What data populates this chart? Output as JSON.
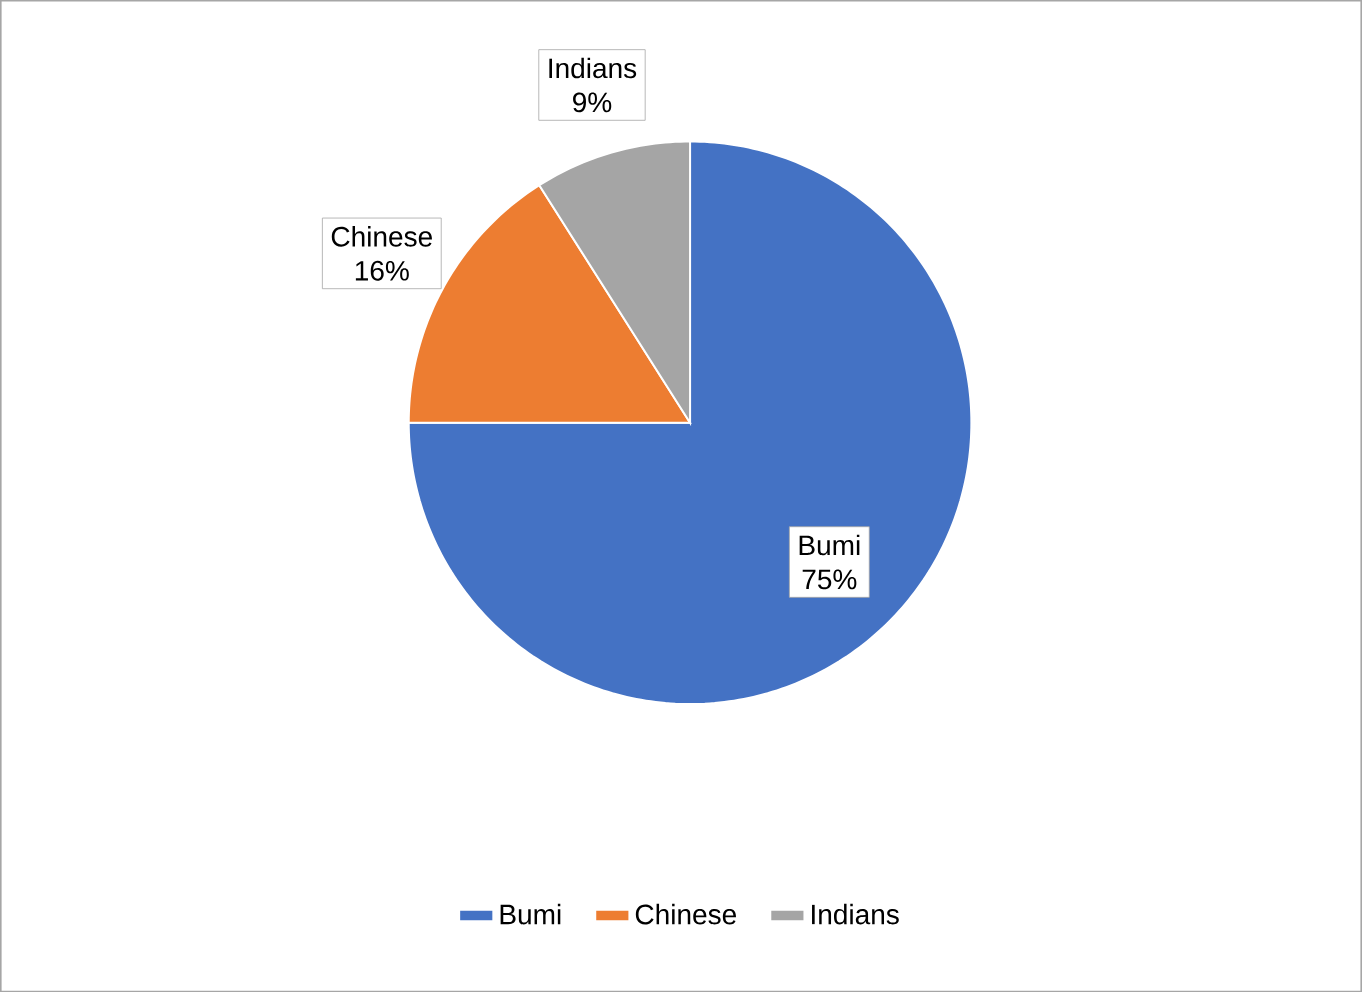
{
  "chart_data": {
    "type": "pie",
    "categories": [
      "Bumi",
      "Chinese",
      "Indians"
    ],
    "values": [
      75,
      16,
      9
    ],
    "colors": [
      "#4472c4",
      "#ed7d31",
      "#a5a5a5"
    ],
    "value_labels": [
      "75%",
      "16%",
      "9%"
    ],
    "legend": "bottom"
  }
}
